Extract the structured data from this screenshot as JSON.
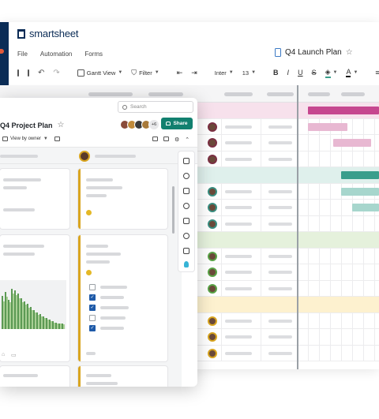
{
  "app": {
    "logo_text": "smartsheet"
  },
  "menu": {
    "items": [
      "File",
      "Automation",
      "Forms"
    ]
  },
  "document": {
    "title": "Q4 Launch Plan"
  },
  "toolbar": {
    "view_label": "Gantt View",
    "filter_label": "Filter",
    "font_label": "Inter",
    "size_label": "13",
    "bold": "B",
    "italic": "I",
    "underline": "U",
    "strike": "S",
    "text_color": "A"
  },
  "project": {
    "title": "Q4 Project Plan",
    "search_placeholder": "Search",
    "share_label": "Share",
    "collaborators_extra": "+6",
    "view_label": "View by owner"
  },
  "colors": {
    "accent_teal": "#12806f",
    "brand_navy": "#0b2c56",
    "gantt_magenta": "#c6478f",
    "gantt_teal": "#3a9e8c",
    "lane_gold": "#d9a520"
  },
  "gantt": {
    "groups": [
      {
        "color": "#f7e1ec",
        "bar": "#c6478f",
        "light": "#e8b8d2"
      },
      {
        "color": "#dff0ec",
        "bar": "#3a9e8c",
        "light": "#a7d6cd"
      },
      {
        "color": "#e5f1dc",
        "bar": "#79b55f",
        "light": "#bfdcae"
      },
      {
        "color": "#fdf1cf",
        "bar": "#e6b423",
        "light": "#f4d98a"
      }
    ]
  },
  "chart_data": {
    "type": "bar",
    "categories": [
      "1",
      "2",
      "3",
      "4",
      "5",
      "6",
      "7",
      "8",
      "9",
      "10",
      "11",
      "12",
      "13",
      "14",
      "15",
      "16",
      "17",
      "18",
      "19",
      "20"
    ],
    "series": [
      {
        "values": [
          45,
          50,
          40,
          55,
          52,
          48,
          42,
          38,
          34,
          30,
          26,
          22,
          20,
          17,
          15,
          13,
          11,
          9,
          8,
          7
        ]
      },
      {
        "values": [
          38,
          44,
          36,
          48,
          46,
          42,
          36,
          33,
          29,
          26,
          22,
          19,
          17,
          15,
          13,
          11,
          9,
          8,
          7,
          6
        ]
      }
    ],
    "ylim": [
      0,
      60
    ]
  },
  "icons": {
    "rail": [
      "comment-icon",
      "link-icon",
      "briefcase-icon",
      "history-icon",
      "document-icon",
      "activity-icon",
      "layout-icon",
      "lightbulb-icon"
    ]
  }
}
